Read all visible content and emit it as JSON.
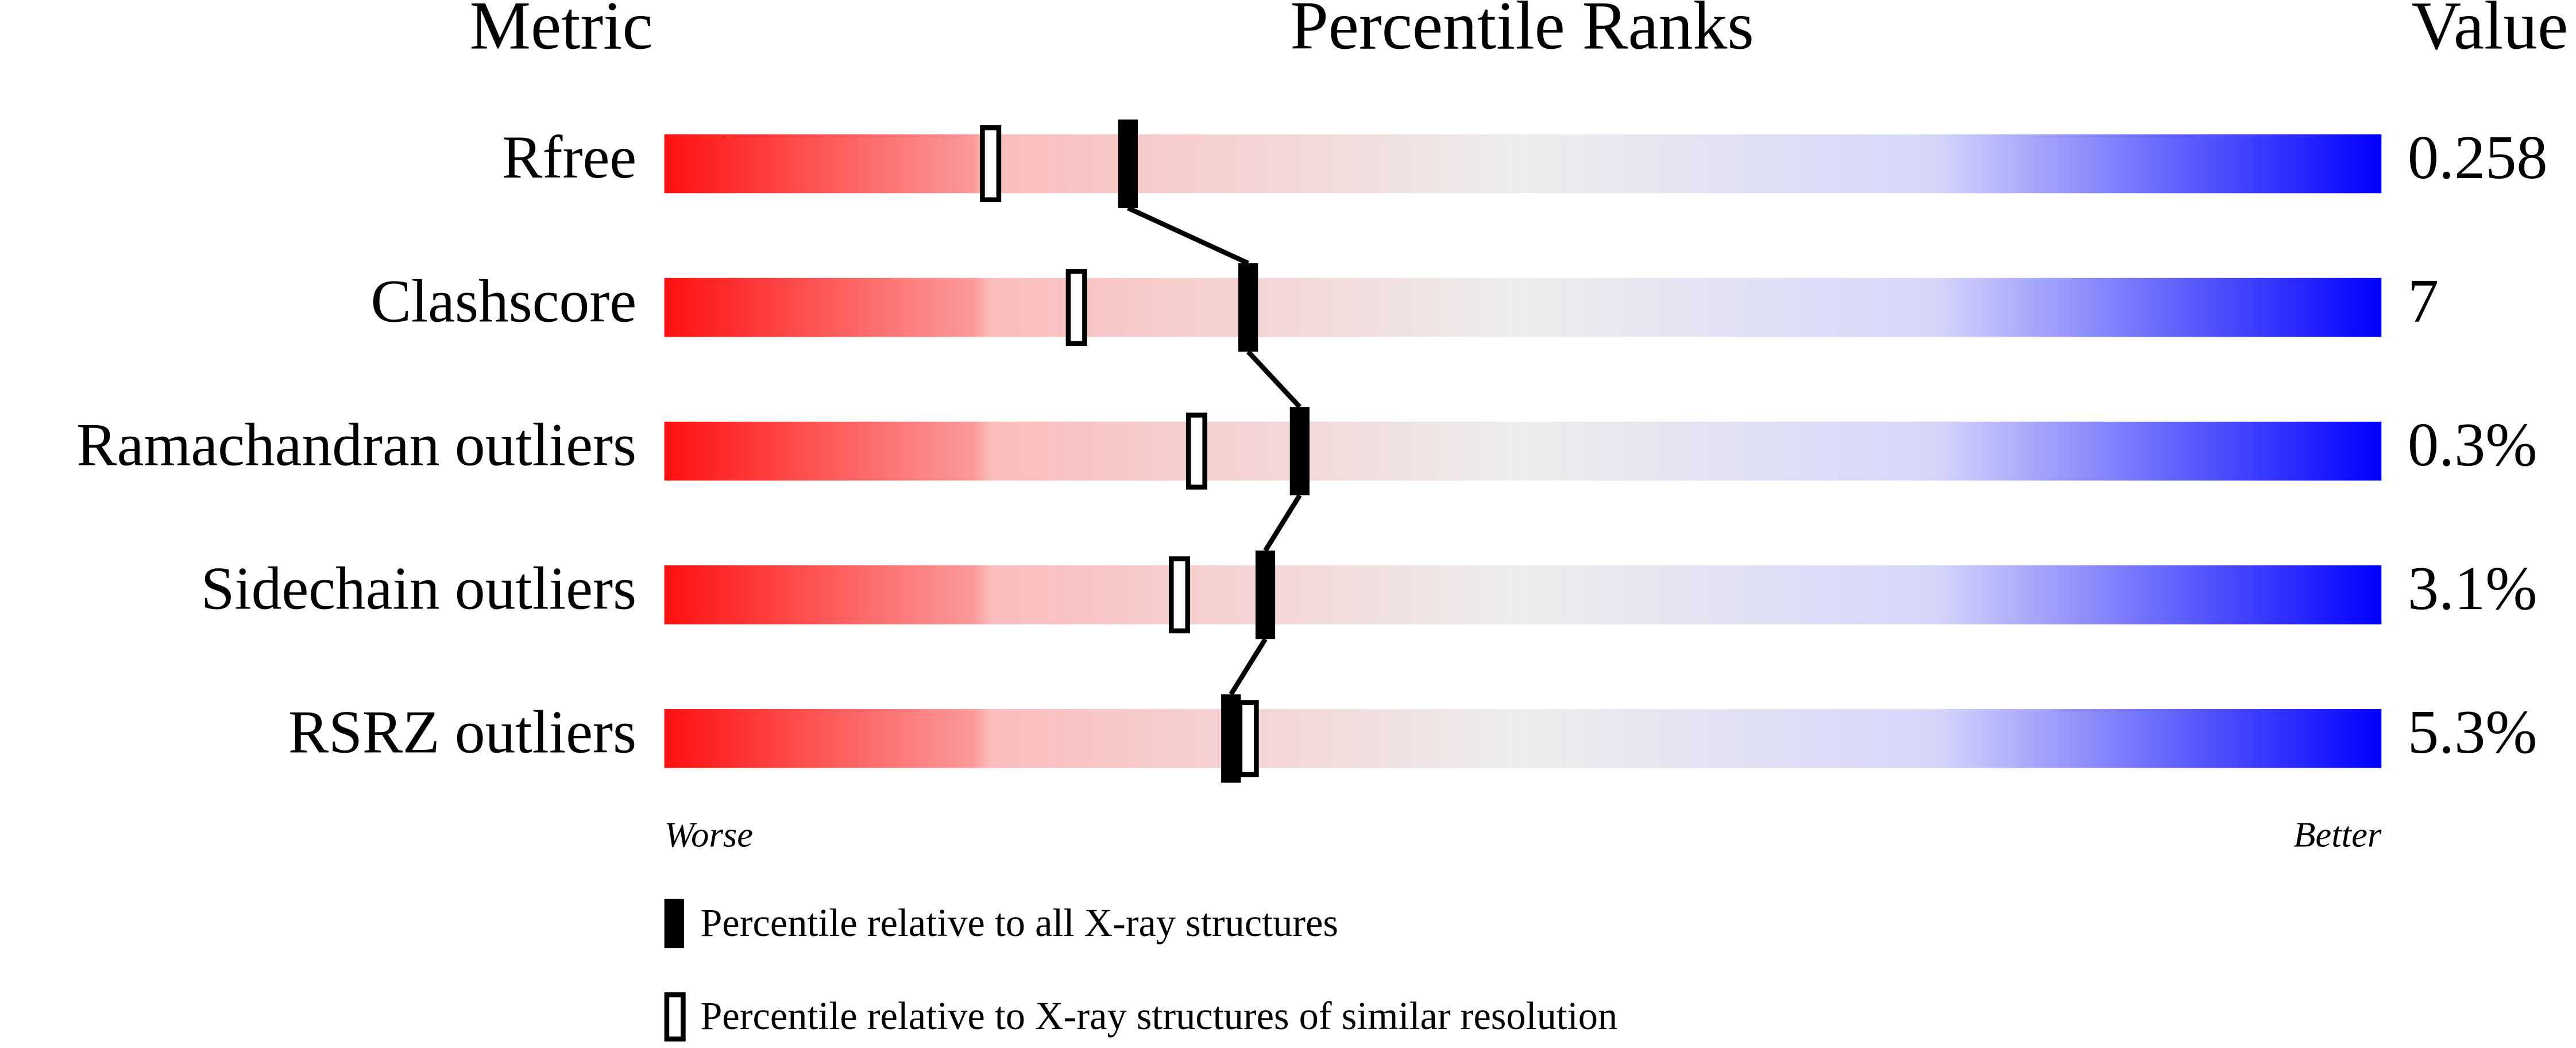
{
  "chart_data": {
    "type": "percentile-slider",
    "column_titles": [
      "Metric",
      "Percentile Ranks",
      "Value"
    ],
    "categories": [
      "Rfree",
      "Clashscore",
      "Ramachandran outliers",
      "Sidechain outliers",
      "RSRZ outliers"
    ],
    "metric_values": [
      "0.258",
      "7",
      "0.3%",
      "3.1%",
      "5.3%"
    ],
    "series": [
      {
        "name": "Percentile relative to all X-ray structures",
        "color": "#000000",
        "style": "filled",
        "values": [
          27,
          34,
          37,
          35,
          33
        ]
      },
      {
        "name": "Percentile relative to X-ray structures of similar resolution",
        "color": "#000000",
        "style": "open",
        "values": [
          19,
          24,
          31,
          30,
          34
        ]
      }
    ],
    "xlim": [
      0,
      100
    ],
    "x_start_label": "Worse",
    "x_end_label": "Better"
  }
}
